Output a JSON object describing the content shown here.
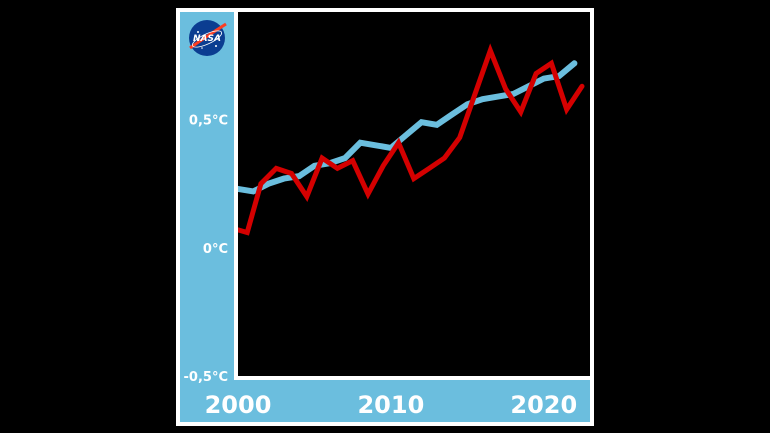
{
  "logo": {
    "text": "NASA",
    "icon": "nasa-meatball-logo"
  },
  "colors": {
    "background": "#000000",
    "frame": "#ffffff",
    "axis_panel": "#6bbede",
    "plot_bg": "#000000",
    "trend_line": "#6bbede",
    "anomaly_line": "#d40000"
  },
  "chart_data": {
    "type": "line",
    "title": "",
    "xlabel": "",
    "ylabel": "",
    "x_ticks": [
      "2000",
      "2010",
      "2020"
    ],
    "x_tick_values": [
      2000,
      2010,
      2020
    ],
    "y_ticks": [
      "0,5°C",
      "0°C",
      "-0,5°C"
    ],
    "y_tick_values": [
      0.5,
      0,
      -0.5
    ],
    "xlim": [
      2000,
      2022.5
    ],
    "ylim": [
      -0.5,
      0.92
    ],
    "grid": false,
    "series": [
      {
        "key": "trend",
        "color": "#6bbede",
        "x": [
          2000,
          2001,
          2002,
          2003,
          2004,
          2005,
          2006,
          2007,
          2008,
          2009,
          2010,
          2011,
          2012,
          2013,
          2014,
          2015,
          2016,
          2017,
          2018,
          2019,
          2020,
          2021,
          2022
        ],
        "y": [
          0.23,
          0.22,
          0.25,
          0.27,
          0.28,
          0.32,
          0.33,
          0.35,
          0.41,
          0.4,
          0.39,
          0.44,
          0.49,
          0.48,
          0.52,
          0.56,
          0.58,
          0.59,
          0.6,
          0.63,
          0.66,
          0.67,
          0.72
        ]
      },
      {
        "key": "annual",
        "color": "#d40000",
        "x": [
          2000,
          2000.6,
          2001.5,
          2002.5,
          2003.5,
          2004.5,
          2005.5,
          2006.5,
          2007.5,
          2008.5,
          2009.5,
          2010.5,
          2011.5,
          2012.5,
          2013.5,
          2014.5,
          2015.5,
          2016.5,
          2017.5,
          2018.5,
          2019.5,
          2020.5,
          2021.5,
          2022.5
        ],
        "y": [
          0.07,
          0.06,
          0.25,
          0.31,
          0.29,
          0.2,
          0.35,
          0.31,
          0.34,
          0.21,
          0.32,
          0.41,
          0.27,
          0.31,
          0.35,
          0.43,
          0.6,
          0.77,
          0.62,
          0.53,
          0.68,
          0.72,
          0.54,
          0.63
        ]
      }
    ]
  }
}
